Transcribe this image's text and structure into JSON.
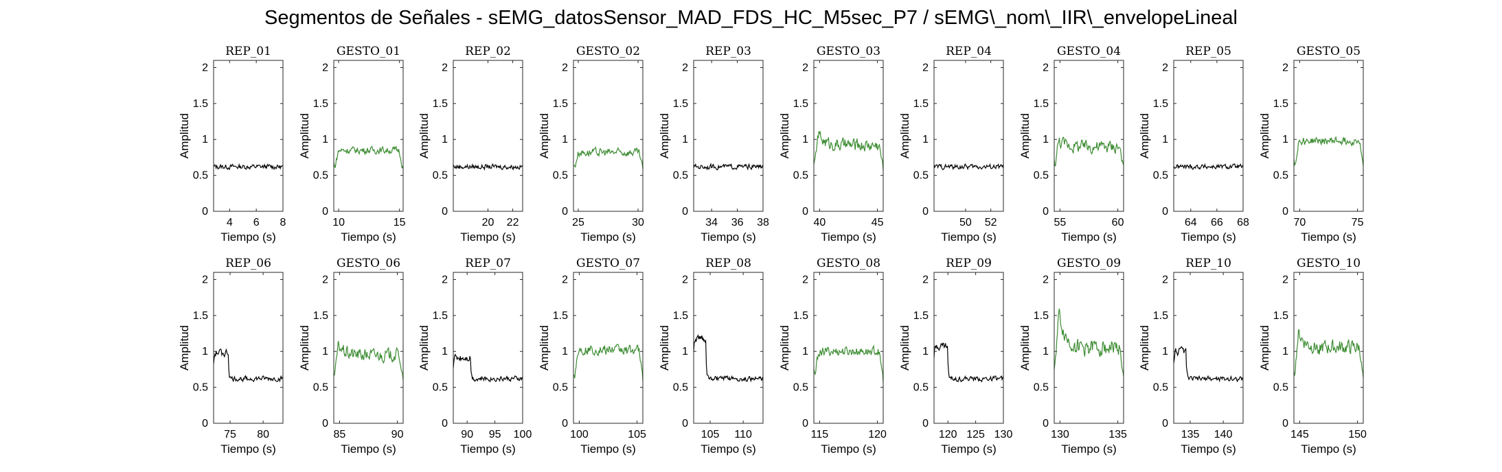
{
  "figure": {
    "title": "Segmentos de Señales - sEMG_datosSensor_MAD_FDS_HC_M5sec_P7 / sEMG\\_nom\\_IIR\\_envelopeLineal"
  },
  "colors": {
    "rep": "#000000",
    "gesto": "#3c8c32",
    "axis": "#262626"
  },
  "chart_data": [
    {
      "type": "line",
      "title": "REP_01",
      "xlabel": "Tiempo (s)",
      "ylabel": "Amplitud",
      "xlim": [
        2.8,
        8
      ],
      "ylim": [
        0,
        2.1
      ],
      "xticks": [
        4,
        6,
        8
      ],
      "yticks": [
        0,
        0.5,
        1,
        1.5,
        2
      ],
      "color": "#000000",
      "mean": 0.62,
      "noise": 0.05,
      "initial": 0,
      "decay": 1
    },
    {
      "type": "line",
      "title": "GESTO_01",
      "xlabel": "Tiempo (s)",
      "ylabel": "Amplitud",
      "xlim": [
        9.6,
        15.3
      ],
      "ylim": [
        0,
        2.1
      ],
      "xticks": [
        10,
        15
      ],
      "yticks": [
        0,
        0.5,
        1,
        1.5,
        2
      ],
      "color": "#3c8c32",
      "mean": 0.85,
      "noise": 0.07,
      "initial": 0,
      "decay": 1,
      "ramp": true
    },
    {
      "type": "line",
      "title": "REP_02",
      "xlabel": "Tiempo (s)",
      "ylabel": "Amplitud",
      "xlim": [
        17.2,
        22.8
      ],
      "ylim": [
        0,
        2.1
      ],
      "xticks": [
        20,
        22
      ],
      "yticks": [
        0,
        0.5,
        1,
        1.5,
        2
      ],
      "color": "#000000",
      "mean": 0.62,
      "noise": 0.05,
      "initial": 0,
      "decay": 1
    },
    {
      "type": "line",
      "title": "GESTO_02",
      "xlabel": "Tiempo (s)",
      "ylabel": "Amplitud",
      "xlim": [
        24.6,
        30.4
      ],
      "ylim": [
        0,
        2.1
      ],
      "xticks": [
        25,
        30
      ],
      "yticks": [
        0,
        0.5,
        1,
        1.5,
        2
      ],
      "color": "#3c8c32",
      "mean": 0.82,
      "noise": 0.08,
      "initial": 0,
      "decay": 1,
      "ramp": true
    },
    {
      "type": "line",
      "title": "REP_03",
      "xlabel": "Tiempo (s)",
      "ylabel": "Amplitud",
      "xlim": [
        32.6,
        38
      ],
      "ylim": [
        0,
        2.1
      ],
      "xticks": [
        34,
        36,
        38
      ],
      "yticks": [
        0,
        0.5,
        1,
        1.5,
        2
      ],
      "color": "#000000",
      "mean": 0.62,
      "noise": 0.05,
      "initial": 0,
      "decay": 1
    },
    {
      "type": "line",
      "title": "GESTO_03",
      "xlabel": "Tiempo (s)",
      "ylabel": "Amplitud",
      "xlim": [
        39.5,
        45.5
      ],
      "ylim": [
        0,
        2.1
      ],
      "xticks": [
        40,
        45
      ],
      "yticks": [
        0,
        0.5,
        1,
        1.5,
        2
      ],
      "color": "#3c8c32",
      "mean": 0.92,
      "noise": 0.08,
      "initial": 1.25,
      "decay": 1,
      "ramp": true
    },
    {
      "type": "line",
      "title": "REP_04",
      "xlabel": "Tiempo (s)",
      "ylabel": "Amplitud",
      "xlim": [
        47.5,
        53
      ],
      "ylim": [
        0,
        2.1
      ],
      "xticks": [
        50,
        52
      ],
      "yticks": [
        0,
        0.5,
        1,
        1.5,
        2
      ],
      "color": "#000000",
      "mean": 0.62,
      "noise": 0.05,
      "initial": 0,
      "decay": 1
    },
    {
      "type": "line",
      "title": "GESTO_04",
      "xlabel": "Tiempo (s)",
      "ylabel": "Amplitud",
      "xlim": [
        54.5,
        60.5
      ],
      "ylim": [
        0,
        2.1
      ],
      "xticks": [
        55,
        60
      ],
      "yticks": [
        0,
        0.5,
        1,
        1.5,
        2
      ],
      "color": "#3c8c32",
      "mean": 0.9,
      "noise": 0.08,
      "initial": 1.1,
      "decay": 1,
      "ramp": true
    },
    {
      "type": "line",
      "title": "REP_05",
      "xlabel": "Tiempo (s)",
      "ylabel": "Amplitud",
      "xlim": [
        62.7,
        68
      ],
      "ylim": [
        0,
        2.1
      ],
      "xticks": [
        64,
        66,
        68
      ],
      "yticks": [
        0,
        0.5,
        1,
        1.5,
        2
      ],
      "color": "#000000",
      "mean": 0.62,
      "noise": 0.05,
      "initial": 0,
      "decay": 1
    },
    {
      "type": "line",
      "title": "GESTO_05",
      "xlabel": "Tiempo (s)",
      "ylabel": "Amplitud",
      "xlim": [
        69.5,
        75.5
      ],
      "ylim": [
        0,
        2.1
      ],
      "xticks": [
        70,
        75
      ],
      "yticks": [
        0,
        0.5,
        1,
        1.5,
        2
      ],
      "color": "#3c8c32",
      "mean": 0.98,
      "noise": 0.08,
      "initial": 0,
      "decay": 1,
      "ramp": true
    },
    {
      "type": "line",
      "title": "REP_06",
      "xlabel": "Tiempo (s)",
      "ylabel": "Amplitud",
      "xlim": [
        72.5,
        83
      ],
      "ylim": [
        0,
        2.1
      ],
      "xticks": [
        75,
        80
      ],
      "yticks": [
        0,
        0.5,
        1,
        1.5,
        2
      ],
      "color": "#000000",
      "mean": 0.62,
      "noise": 0.05,
      "initial": 0.98,
      "decay": 0.22
    },
    {
      "type": "line",
      "title": "GESTO_06",
      "xlabel": "Tiempo (s)",
      "ylabel": "Amplitud",
      "xlim": [
        84.5,
        90.5
      ],
      "ylim": [
        0,
        2.1
      ],
      "xticks": [
        85,
        90
      ],
      "yticks": [
        0,
        0.5,
        1,
        1.5,
        2
      ],
      "color": "#3c8c32",
      "mean": 0.95,
      "noise": 0.08,
      "initial": 1.25,
      "decay": 1,
      "ramp": true
    },
    {
      "type": "line",
      "title": "REP_07",
      "xlabel": "Tiempo (s)",
      "ylabel": "Amplitud",
      "xlim": [
        87.5,
        100
      ],
      "ylim": [
        0,
        2.1
      ],
      "xticks": [
        90,
        95,
        100
      ],
      "yticks": [
        0,
        0.5,
        1,
        1.5,
        2
      ],
      "color": "#000000",
      "mean": 0.62,
      "noise": 0.05,
      "initial": 0.92,
      "decay": 0.25
    },
    {
      "type": "line",
      "title": "GESTO_07",
      "xlabel": "Tiempo (s)",
      "ylabel": "Amplitud",
      "xlim": [
        99.5,
        105.5
      ],
      "ylim": [
        0,
        2.1
      ],
      "xticks": [
        100,
        105
      ],
      "yticks": [
        0,
        0.5,
        1,
        1.5,
        2
      ],
      "color": "#3c8c32",
      "mean": 1.02,
      "noise": 0.1,
      "initial": 0,
      "decay": 1,
      "ramp": true
    },
    {
      "type": "line",
      "title": "REP_08",
      "xlabel": "Tiempo (s)",
      "ylabel": "Amplitud",
      "xlim": [
        102.5,
        113
      ],
      "ylim": [
        0,
        2.1
      ],
      "xticks": [
        105,
        110
      ],
      "yticks": [
        0,
        0.5,
        1,
        1.5,
        2
      ],
      "color": "#000000",
      "mean": 0.62,
      "noise": 0.05,
      "initial": 1.18,
      "decay": 0.18
    },
    {
      "type": "line",
      "title": "GESTO_08",
      "xlabel": "Tiempo (s)",
      "ylabel": "Amplitud",
      "xlim": [
        114.5,
        120.5
      ],
      "ylim": [
        0,
        2.1
      ],
      "xticks": [
        115,
        120
      ],
      "yticks": [
        0,
        0.5,
        1,
        1.5,
        2
      ],
      "color": "#3c8c32",
      "mean": 1.0,
      "noise": 0.09,
      "initial": 0,
      "decay": 1,
      "ramp": true
    },
    {
      "type": "line",
      "title": "REP_09",
      "xlabel": "Tiempo (s)",
      "ylabel": "Amplitud",
      "xlim": [
        117.5,
        130
      ],
      "ylim": [
        0,
        2.1
      ],
      "xticks": [
        120,
        125,
        130
      ],
      "yticks": [
        0,
        0.5,
        1,
        1.5,
        2
      ],
      "color": "#000000",
      "mean": 0.62,
      "noise": 0.05,
      "initial": 1.08,
      "decay": 0.2
    },
    {
      "type": "line",
      "title": "GESTO_09",
      "xlabel": "Tiempo (s)",
      "ylabel": "Amplitud",
      "xlim": [
        129.5,
        135.5
      ],
      "ylim": [
        0,
        2.1
      ],
      "xticks": [
        130,
        135
      ],
      "yticks": [
        0,
        0.5,
        1,
        1.5,
        2
      ],
      "color": "#3c8c32",
      "mean": 1.05,
      "noise": 0.1,
      "initial": 2.1,
      "decay": 1,
      "ramp": true
    },
    {
      "type": "line",
      "title": "REP_10",
      "xlabel": "Tiempo (s)",
      "ylabel": "Amplitud",
      "xlim": [
        132.5,
        143
      ],
      "ylim": [
        0,
        2.1
      ],
      "xticks": [
        135,
        140
      ],
      "yticks": [
        0,
        0.5,
        1,
        1.5,
        2
      ],
      "color": "#000000",
      "mean": 0.62,
      "noise": 0.05,
      "initial": 1.0,
      "decay": 0.18
    },
    {
      "type": "line",
      "title": "GESTO_10",
      "xlabel": "Tiempo (s)",
      "ylabel": "Amplitud",
      "xlim": [
        144.5,
        150.5
      ],
      "ylim": [
        0,
        2.1
      ],
      "xticks": [
        145,
        150
      ],
      "yticks": [
        0,
        0.5,
        1,
        1.5,
        2
      ],
      "color": "#3c8c32",
      "mean": 1.05,
      "noise": 0.09,
      "initial": 1.5,
      "decay": 1,
      "ramp": true
    }
  ]
}
